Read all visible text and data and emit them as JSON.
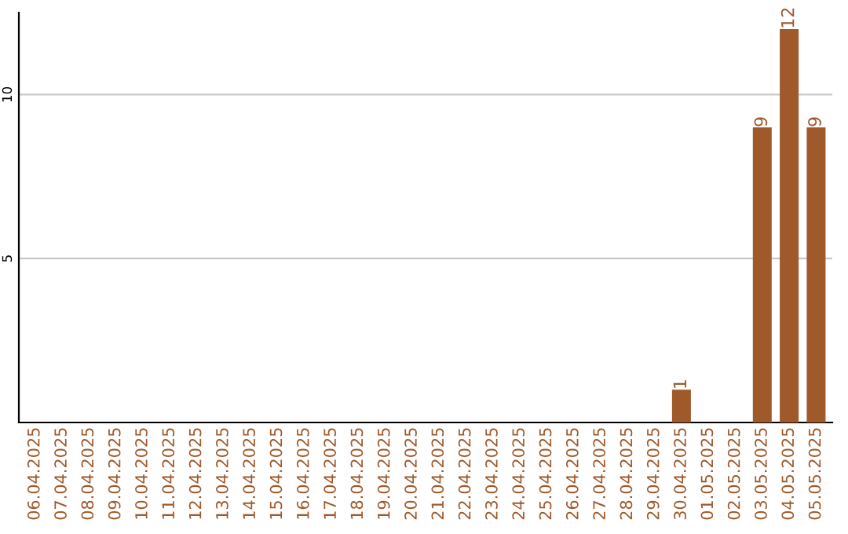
{
  "chart_data": {
    "type": "bar",
    "categories": [
      "06.04.2025",
      "07.04.2025",
      "08.04.2025",
      "09.04.2025",
      "10.04.2025",
      "11.04.2025",
      "12.04.2025",
      "13.04.2025",
      "14.04.2025",
      "15.04.2025",
      "16.04.2025",
      "17.04.2025",
      "18.04.2025",
      "19.04.2025",
      "20.04.2025",
      "21.04.2025",
      "22.04.2025",
      "23.04.2025",
      "24.04.2025",
      "25.04.2025",
      "26.04.2025",
      "27.04.2025",
      "28.04.2025",
      "29.04.2025",
      "30.04.2025",
      "01.05.2025",
      "02.05.2025",
      "03.05.2025",
      "04.05.2025",
      "05.05.2025"
    ],
    "values": [
      0,
      0,
      0,
      0,
      0,
      0,
      0,
      0,
      0,
      0,
      0,
      0,
      0,
      0,
      0,
      0,
      0,
      0,
      0,
      0,
      0,
      0,
      0,
      0,
      1,
      0,
      0,
      9,
      12,
      9
    ],
    "value_labels": [
      null,
      null,
      null,
      null,
      null,
      null,
      null,
      null,
      null,
      null,
      null,
      null,
      null,
      null,
      null,
      null,
      null,
      null,
      null,
      null,
      null,
      null,
      null,
      null,
      "1",
      null,
      null,
      "9",
      "12",
      "9"
    ],
    "color": "#a0592a",
    "ylim": [
      0,
      12.5
    ],
    "yticks": [
      5,
      10
    ],
    "grid": "y"
  }
}
